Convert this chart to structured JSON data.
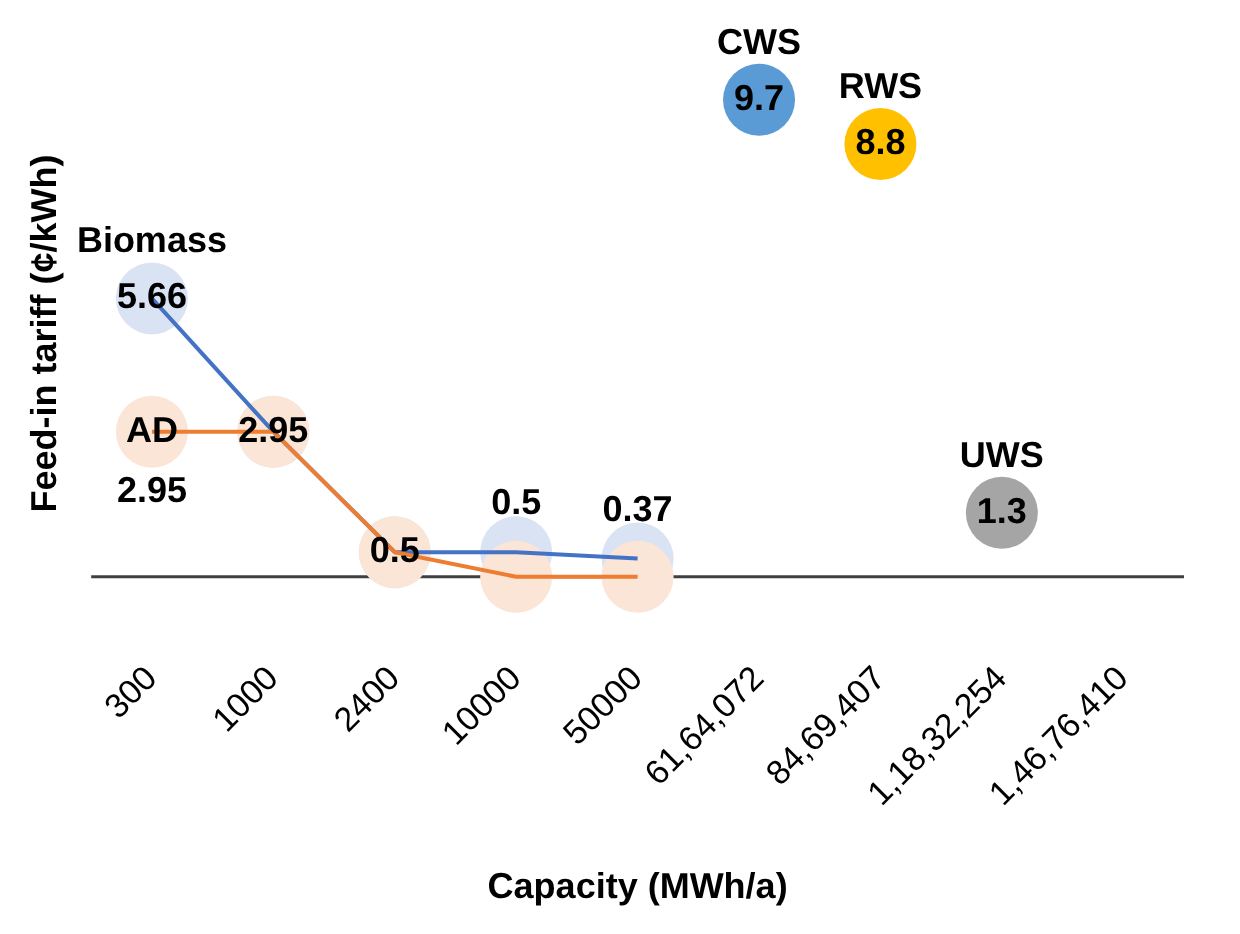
{
  "chart_data": {
    "type": "line",
    "xlabel": "Capacity (MWh/a)",
    "ylabel": "Feed-in tariff (¢/kWh)",
    "marker": "circle",
    "line_style": "solid",
    "grid": false,
    "legend": false,
    "categories": [
      "300",
      "1000",
      "2400",
      "10000",
      "50000",
      "61,64,072",
      "84,69,407",
      "1,18,32,254",
      "1,46,76,410"
    ],
    "series": [
      {
        "name": "Biomass",
        "color": "#4472c4",
        "values": [
          5.66,
          2.95,
          0.5,
          0.5,
          0.37,
          null,
          null,
          null,
          null
        ],
        "value_labels": [
          "5.66",
          null,
          null,
          "0.5",
          "0.37",
          null,
          null,
          null,
          null
        ]
      },
      {
        "name": "AD",
        "color": "#ed7d31",
        "values": [
          2.95,
          2.95,
          0.5,
          0,
          0,
          null,
          null,
          null,
          null
        ],
        "value_labels": [
          "2.95",
          "2.95",
          "0.5",
          null,
          null,
          null,
          null,
          null,
          null
        ]
      },
      {
        "name": "CWS",
        "type": "scatter",
        "color": "#5b9bd5",
        "values": [
          null,
          null,
          null,
          null,
          null,
          9.7,
          null,
          null,
          null
        ],
        "value_labels": [
          null,
          null,
          null,
          null,
          null,
          "9.7",
          null,
          null,
          null
        ]
      },
      {
        "name": "RWS",
        "type": "scatter",
        "color": "#ffc000",
        "values": [
          null,
          null,
          null,
          null,
          null,
          null,
          8.8,
          null,
          null
        ],
        "value_labels": [
          null,
          null,
          null,
          null,
          null,
          null,
          "8.8",
          null,
          null
        ]
      },
      {
        "name": "UWS",
        "type": "scatter",
        "color": "#a5a5a5",
        "values": [
          null,
          null,
          null,
          null,
          null,
          null,
          null,
          1.3,
          null
        ],
        "value_labels": [
          null,
          null,
          null,
          null,
          null,
          null,
          null,
          "1.3",
          null
        ]
      }
    ]
  }
}
